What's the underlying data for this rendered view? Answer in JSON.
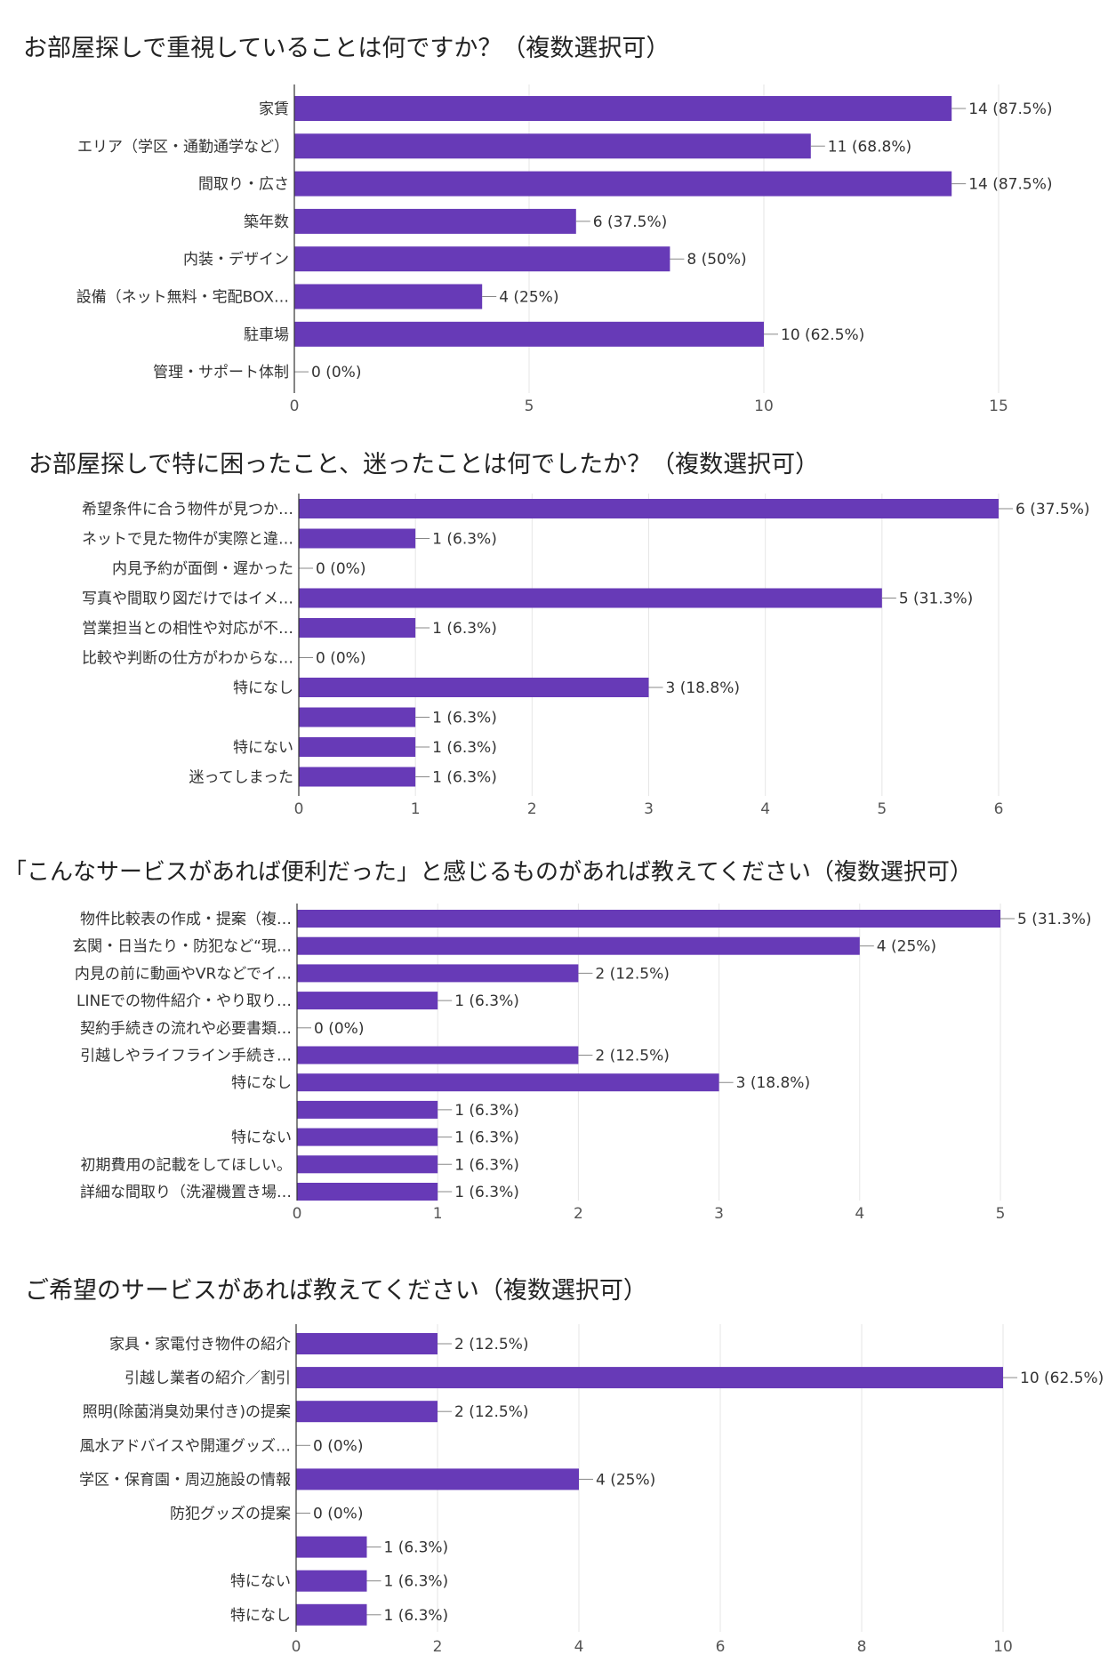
{
  "chart_data": [
    {
      "type": "bar",
      "orientation": "horizontal",
      "title": "お部屋探しで重視していることは何ですか？（複数選択可）",
      "categories": [
        "家賃",
        "エリア（学区・通勤通学など）",
        "間取り・広さ",
        "築年数",
        "内装・デザイン",
        "設備（ネット無料・宅配BOX…",
        "駐車場",
        "管理・サポート体制"
      ],
      "values": [
        14,
        11,
        14,
        6,
        8,
        4,
        10,
        0
      ],
      "data_labels": [
        "14 (87.5%)",
        "11 (68.8%)",
        "14 (87.5%)",
        "6 (37.5%)",
        "8 (50%)",
        "4 (25%)",
        "10 (62.5%)",
        "0 (0%)"
      ],
      "xlim": [
        0,
        15
      ],
      "ticks": [
        0,
        5,
        10,
        15
      ],
      "tick_labels": [
        "0",
        "5",
        "10",
        "15"
      ],
      "grid": true,
      "bar_color": "#673ab7"
    },
    {
      "type": "bar",
      "orientation": "horizontal",
      "title": "お部屋探しで特に困ったこと、迷ったことは何でしたか？（複数選択可）",
      "categories": [
        "希望条件に合う物件が見つか…",
        "ネットで見た物件が実際と違…",
        "内見予約が面倒・遅かった",
        "写真や間取り図だけではイメ…",
        "営業担当との相性や対応が不…",
        "比較や判断の仕方がわからな…",
        "特になし",
        "",
        "特にない",
        "迷ってしまった"
      ],
      "values": [
        6,
        1,
        0,
        5,
        1,
        0,
        3,
        1,
        1,
        1
      ],
      "data_labels": [
        "6 (37.5%)",
        "1 (6.3%)",
        "0 (0%)",
        "5 (31.3%)",
        "1 (6.3%)",
        "0 (0%)",
        "3 (18.8%)",
        "1 (6.3%)",
        "1 (6.3%)",
        "1 (6.3%)"
      ],
      "xlim": [
        0,
        6
      ],
      "ticks": [
        0,
        1,
        2,
        3,
        4,
        5,
        6
      ],
      "tick_labels": [
        "0",
        "1",
        "2",
        "3",
        "4",
        "5",
        "6"
      ],
      "grid": true,
      "bar_color": "#673ab7"
    },
    {
      "type": "bar",
      "orientation": "horizontal",
      "title": "「こんなサービスがあれば便利だった」と感じるものがあれば教えてください（複数選択可）",
      "categories": [
        "物件比較表の作成・提案（複…",
        "玄関・日当たり・防犯など“現…",
        "内見の前に動画やVRなどでイ…",
        "LINEでの物件紹介・やり取り…",
        "契約手続きの流れや必要書類…",
        "引越しやライフライン手続き…",
        "特になし",
        "",
        "特にない",
        "初期費用の記載をしてほしい。",
        "詳細な間取り（洗濯機置き場…"
      ],
      "values": [
        5,
        4,
        2,
        1,
        0,
        2,
        3,
        1,
        1,
        1,
        1
      ],
      "data_labels": [
        "5 (31.3%)",
        "4 (25%)",
        "2 (12.5%)",
        "1 (6.3%)",
        "0 (0%)",
        "2 (12.5%)",
        "3 (18.8%)",
        "1 (6.3%)",
        "1 (6.3%)",
        "1 (6.3%)",
        "1 (6.3%)"
      ],
      "xlim": [
        0,
        5
      ],
      "ticks": [
        0,
        1,
        2,
        3,
        4,
        5
      ],
      "tick_labels": [
        "0",
        "1",
        "2",
        "3",
        "4",
        "5"
      ],
      "grid": true,
      "bar_color": "#673ab7"
    },
    {
      "type": "bar",
      "orientation": "horizontal",
      "title": "ご希望のサービスがあれば教えてください（複数選択可）",
      "categories": [
        "家具・家電付き物件の紹介",
        "引越し業者の紹介／割引",
        "照明(除菌消臭効果付き)の提案",
        "風水アドバイスや開運グッズ…",
        "学区・保育園・周辺施設の情報",
        "防犯グッズの提案",
        "",
        "特にない",
        "特になし"
      ],
      "values": [
        2,
        10,
        2,
        0,
        4,
        0,
        1,
        1,
        1
      ],
      "data_labels": [
        "2 (12.5%)",
        "10 (62.5%)",
        "2 (12.5%)",
        "0 (0%)",
        "4 (25%)",
        "0 (0%)",
        "1 (6.3%)",
        "1 (6.3%)",
        "1 (6.3%)"
      ],
      "xlim": [
        0,
        10
      ],
      "ticks": [
        0,
        2,
        4,
        6,
        8,
        10
      ],
      "tick_labels": [
        "0",
        "2",
        "4",
        "6",
        "8",
        "10"
      ],
      "grid": true,
      "bar_color": "#673ab7"
    }
  ]
}
